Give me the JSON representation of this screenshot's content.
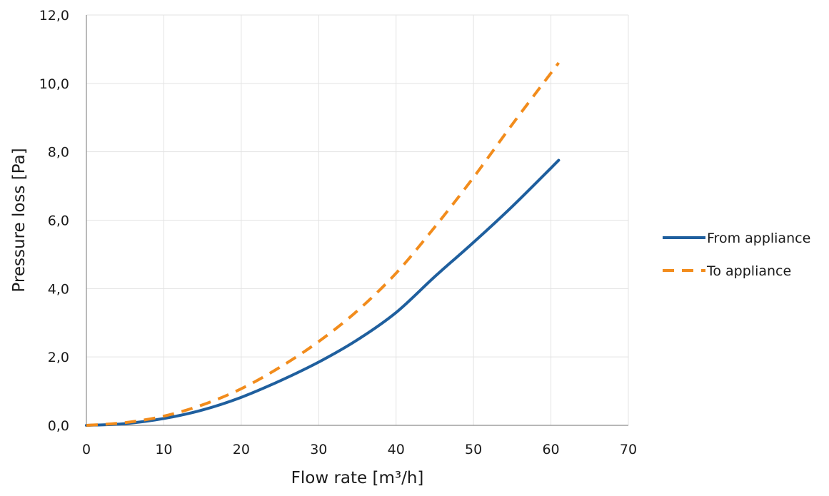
{
  "chart_data": {
    "type": "line",
    "title": "",
    "xlabel": "Flow rate [m³/h]",
    "ylabel": "Pressure loss [Pa]",
    "xlim": [
      0,
      70
    ],
    "ylim": [
      0,
      12
    ],
    "x_ticks": [
      "0",
      "10",
      "20",
      "30",
      "40",
      "50",
      "60",
      "70"
    ],
    "y_ticks": [
      "0,0",
      "2,0",
      "4,0",
      "6,0",
      "8,0",
      "10,0",
      "12,0"
    ],
    "grid": true,
    "legend_position": "right",
    "series": [
      {
        "name": "From appliance",
        "color": "#1f5f9e",
        "style": "solid",
        "points": [
          [
            0,
            0
          ],
          [
            5,
            0.05
          ],
          [
            10,
            0.2
          ],
          [
            15,
            0.45
          ],
          [
            20,
            0.82
          ],
          [
            25,
            1.3
          ],
          [
            30,
            1.85
          ],
          [
            35,
            2.5
          ],
          [
            40,
            3.3
          ],
          [
            45,
            4.35
          ],
          [
            50,
            5.35
          ],
          [
            55,
            6.4
          ],
          [
            61,
            7.75
          ]
        ]
      },
      {
        "name": "To appliance",
        "color": "#f28c1c",
        "style": "dashed",
        "points": [
          [
            0,
            0
          ],
          [
            5,
            0.08
          ],
          [
            10,
            0.27
          ],
          [
            15,
            0.6
          ],
          [
            20,
            1.07
          ],
          [
            25,
            1.7
          ],
          [
            30,
            2.45
          ],
          [
            35,
            3.35
          ],
          [
            40,
            4.45
          ],
          [
            45,
            5.8
          ],
          [
            50,
            7.25
          ],
          [
            55,
            8.8
          ],
          [
            61,
            10.6
          ]
        ]
      }
    ]
  }
}
